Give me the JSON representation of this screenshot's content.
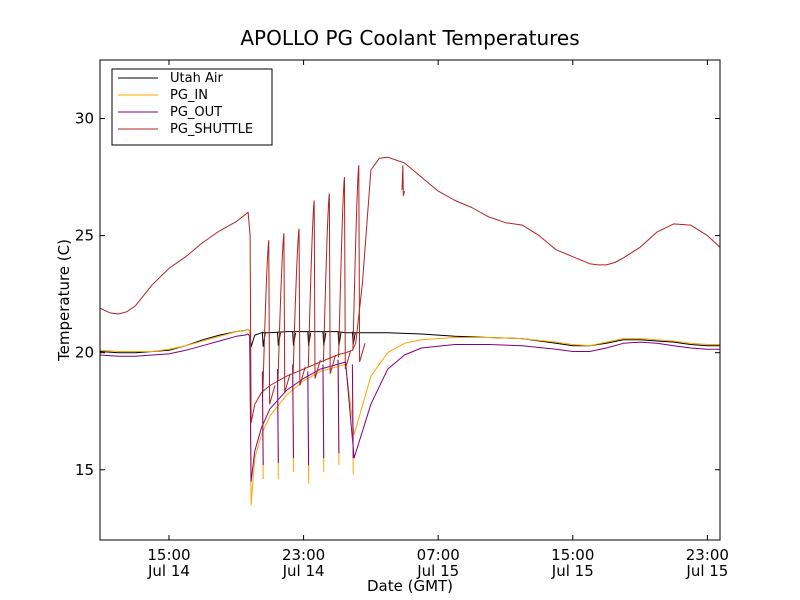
{
  "chart_data": {
    "type": "line",
    "title": "APOLLO PG Coolant Temperatures",
    "xlabel": "Date (GMT)",
    "ylabel": "Temperature (C)",
    "x_unit": "hours since Jul 14 00:00 GMT",
    "xlim": [
      10.9,
      47.75
    ],
    "ylim": [
      12.0,
      32.5
    ],
    "x_ticks": [
      {
        "x": 15,
        "line1": "15:00",
        "line2": "Jul 14"
      },
      {
        "x": 23,
        "line1": "23:00",
        "line2": "Jul 14"
      },
      {
        "x": 31,
        "line1": "07:00",
        "line2": "Jul 15"
      },
      {
        "x": 39,
        "line1": "15:00",
        "line2": "Jul 15"
      },
      {
        "x": 47,
        "line1": "23:00",
        "line2": "Jul 15"
      }
    ],
    "y_ticks": [
      {
        "y": 15,
        "label": "15"
      },
      {
        "y": 20,
        "label": "20"
      },
      {
        "y": 25,
        "label": "25"
      },
      {
        "y": 30,
        "label": "30"
      }
    ],
    "legend_position": "top-left",
    "series": [
      {
        "name": "Utah Air",
        "color": "#000000",
        "x": [
          10.9,
          12,
          13,
          14,
          15,
          16,
          17,
          18,
          19,
          19.5,
          19.7,
          19.8,
          19.88,
          20.1,
          20.5,
          21,
          22,
          23,
          24,
          25,
          25.5,
          26,
          28,
          30,
          32,
          34,
          36,
          38,
          39,
          40,
          41,
          42,
          43,
          44,
          45,
          46,
          47,
          47.75
        ],
        "y": [
          20.05,
          20.0,
          20.0,
          20.05,
          20.1,
          20.3,
          20.55,
          20.75,
          20.9,
          20.95,
          21.0,
          20.9,
          20.25,
          20.75,
          20.85,
          20.85,
          20.9,
          20.9,
          20.9,
          20.9,
          20.85,
          20.85,
          20.85,
          20.8,
          20.7,
          20.65,
          20.6,
          20.4,
          20.3,
          20.3,
          20.4,
          20.55,
          20.55,
          20.5,
          20.45,
          20.35,
          20.3,
          20.3
        ]
      },
      {
        "name": "PG_IN",
        "color": "#ffa500",
        "x": [
          10.9,
          12,
          13,
          14,
          15,
          16,
          17,
          18,
          19,
          19.5,
          19.7,
          19.8,
          19.88,
          20.1,
          20.5,
          21,
          22,
          23,
          24,
          25,
          25.5,
          26,
          27,
          28,
          29,
          30,
          32,
          34,
          36,
          38,
          39,
          40,
          41,
          42,
          43,
          44,
          45,
          46,
          47,
          47.75
        ],
        "y": [
          20.1,
          20.05,
          20.05,
          20.05,
          20.15,
          20.3,
          20.5,
          20.7,
          20.9,
          20.95,
          21.0,
          20.9,
          13.5,
          15.5,
          16.5,
          17.3,
          18.2,
          18.8,
          19.2,
          19.4,
          19.5,
          16.5,
          19.0,
          20.0,
          20.4,
          20.55,
          20.65,
          20.65,
          20.6,
          20.45,
          20.35,
          20.3,
          20.45,
          20.6,
          20.6,
          20.55,
          20.5,
          20.4,
          20.35,
          20.35
        ]
      },
      {
        "name": "PG_OUT",
        "color": "#800080",
        "x": [
          10.9,
          12,
          13,
          14,
          15,
          16,
          17,
          18,
          19,
          19.5,
          19.7,
          19.8,
          19.88,
          20.1,
          20.5,
          21,
          22,
          23,
          24,
          25,
          25.5,
          26,
          27,
          28,
          29,
          30,
          32,
          34,
          36,
          38,
          39,
          40,
          41,
          42,
          43,
          44,
          45,
          46,
          47,
          47.75
        ],
        "y": [
          19.9,
          19.85,
          19.85,
          19.9,
          19.95,
          20.1,
          20.3,
          20.5,
          20.7,
          20.75,
          20.8,
          20.7,
          14.5,
          15.8,
          16.8,
          17.6,
          18.4,
          18.9,
          19.3,
          19.5,
          19.6,
          15.5,
          17.8,
          19.3,
          19.9,
          20.2,
          20.35,
          20.35,
          20.3,
          20.15,
          20.05,
          20.05,
          20.2,
          20.4,
          20.45,
          20.4,
          20.3,
          20.2,
          20.15,
          20.15
        ]
      },
      {
        "name": "PG_SHUTTLE",
        "color": "#b22222",
        "x": [
          10.9,
          11.5,
          12,
          12.5,
          13,
          14,
          15,
          16,
          17,
          18,
          19,
          19.7,
          19.82,
          19.88,
          20.1,
          20.5,
          21,
          22,
          23,
          24,
          25,
          25.5,
          25.9,
          26.1,
          26.5,
          27,
          27.5,
          28,
          29,
          30,
          30.5,
          31,
          32,
          33,
          34,
          35,
          36,
          37,
          38,
          39,
          40,
          40.5,
          41,
          41.5,
          42,
          43,
          44,
          45,
          46,
          47,
          47.75
        ],
        "y": [
          21.9,
          21.7,
          21.65,
          21.75,
          22.0,
          22.9,
          23.6,
          24.1,
          24.7,
          25.2,
          25.6,
          26.0,
          25.0,
          17.0,
          17.8,
          18.3,
          18.6,
          19.0,
          19.3,
          19.6,
          19.9,
          20.0,
          20.1,
          20.4,
          23.0,
          27.8,
          28.3,
          28.35,
          28.1,
          27.5,
          27.2,
          26.9,
          26.5,
          26.2,
          25.8,
          25.55,
          25.45,
          25.0,
          24.4,
          24.1,
          23.8,
          23.75,
          23.75,
          23.85,
          24.05,
          24.5,
          25.15,
          25.5,
          25.45,
          25.0,
          24.5
        ]
      }
    ],
    "shuttle_pulses": [
      {
        "t": 20.6,
        "low": 18.3,
        "peak": 24.8
      },
      {
        "t": 21.5,
        "low": 18.8,
        "peak": 25.1
      },
      {
        "t": 22.4,
        "low": 19.1,
        "peak": 25.3
      },
      {
        "t": 23.3,
        "low": 19.4,
        "peak": 26.5
      },
      {
        "t": 24.2,
        "low": 19.6,
        "peak": 26.8
      },
      {
        "t": 25.1,
        "low": 19.8,
        "peak": 27.5
      },
      {
        "t": 25.95,
        "low": 20.1,
        "peak": 28.0
      }
    ],
    "pulse_drops": [
      {
        "t": 20.6,
        "air": 20.25,
        "pgin": 14.6,
        "pgout": 15.2
      },
      {
        "t": 21.5,
        "air": 20.3,
        "pgin": 14.6,
        "pgout": 15.3
      },
      {
        "t": 22.4,
        "air": 20.3,
        "pgin": 14.9,
        "pgout": 15.5
      },
      {
        "t": 23.3,
        "air": 20.3,
        "pgin": 14.4,
        "pgout": 15.2
      },
      {
        "t": 24.2,
        "air": 20.3,
        "pgin": 14.9,
        "pgout": 15.5
      },
      {
        "t": 25.1,
        "air": 20.3,
        "pgin": 15.2,
        "pgout": 15.7
      },
      {
        "t": 25.95,
        "air": 20.35,
        "pgin": 14.8,
        "pgout": 15.5
      }
    ],
    "shuttle_spike": {
      "t": 28.9,
      "top": 28.0,
      "bottom": 26.7
    }
  }
}
